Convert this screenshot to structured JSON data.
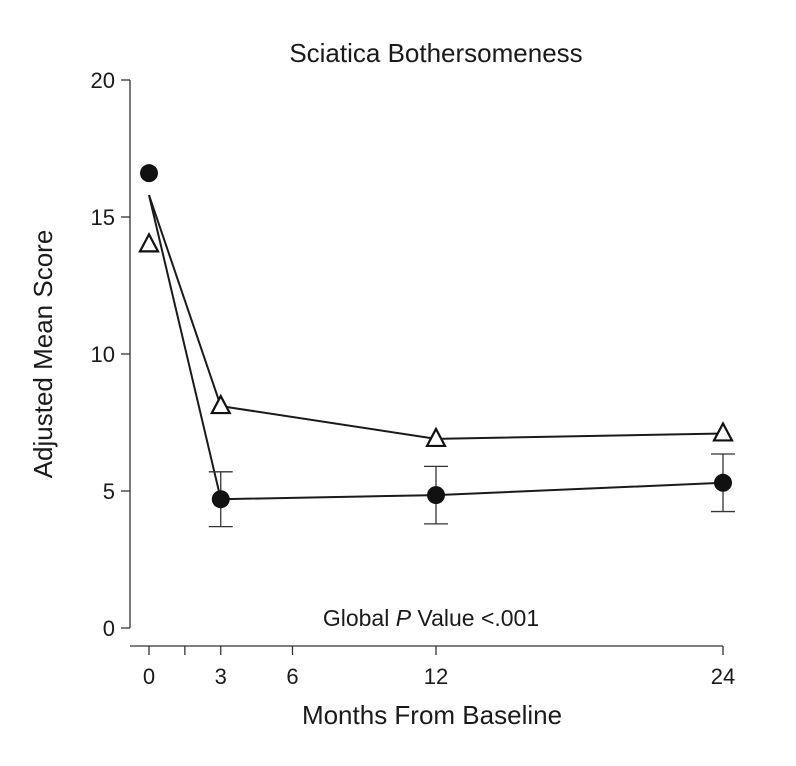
{
  "chart_data": {
    "type": "line",
    "title": "Sciatica Bothersomeness",
    "xlabel": "Months From Baseline",
    "ylabel": "Adjusted Mean Score",
    "xlim": [
      0,
      24
    ],
    "ylim": [
      0,
      20
    ],
    "x_ticks": [
      0,
      3,
      6,
      12,
      24
    ],
    "x_tick_labels": [
      "0",
      "3",
      "6",
      "12",
      "24"
    ],
    "x_minor_ticks": [
      1.5
    ],
    "y_ticks": [
      0,
      5,
      10,
      15,
      20
    ],
    "y_tick_labels": [
      "0",
      "5",
      "10",
      "15",
      "20"
    ],
    "grid": false,
    "annotation": {
      "prefix": "Global ",
      "italic": "P",
      "suffix": " Value <.001"
    },
    "series": [
      {
        "marker": "filled-circle",
        "color": "#111111",
        "points": [
          {
            "x": 0,
            "y": 16.6
          },
          {
            "x": 3,
            "y": 4.7,
            "err_low": 3.7,
            "err_high": 5.7
          },
          {
            "x": 12,
            "y": 4.85,
            "err_low": 3.8,
            "err_high": 5.9
          },
          {
            "x": 24,
            "y": 5.3,
            "err_low": 4.25,
            "err_high": 6.35
          }
        ],
        "line_start": {
          "x": 0,
          "y": 15.8
        }
      },
      {
        "marker": "open-triangle",
        "color": "#111111",
        "points": [
          {
            "x": 0,
            "y": 14.0
          },
          {
            "x": 3,
            "y": 8.1
          },
          {
            "x": 12,
            "y": 6.9
          },
          {
            "x": 24,
            "y": 7.1
          }
        ],
        "line_start": {
          "x": 0,
          "y": 15.8
        }
      }
    ]
  }
}
